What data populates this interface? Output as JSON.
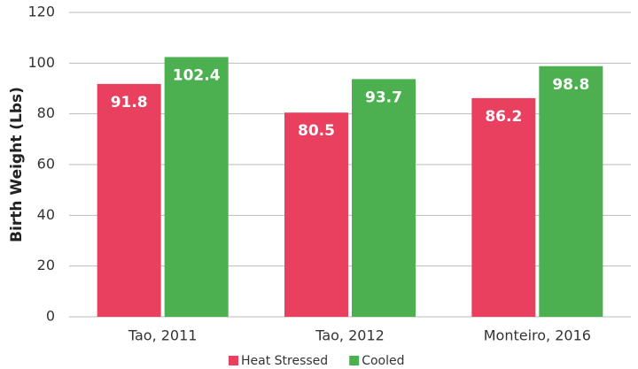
{
  "chart_data": {
    "type": "bar",
    "ylabel": "Birth Weight (Lbs)",
    "categories": [
      "Tao, 2011",
      "Tao, 2012",
      "Monteiro, 2016"
    ],
    "series": [
      {
        "name": "Heat Stressed",
        "color": "#e8405e",
        "values": [
          91.8,
          80.5,
          86.2
        ]
      },
      {
        "name": "Cooled",
        "color": "#4caf50",
        "values": [
          102.4,
          93.7,
          98.8
        ]
      }
    ],
    "ylim": [
      0,
      120
    ],
    "yticks": [
      0,
      20,
      40,
      60,
      80,
      100,
      120
    ],
    "grid": true,
    "legend": "bottom"
  }
}
